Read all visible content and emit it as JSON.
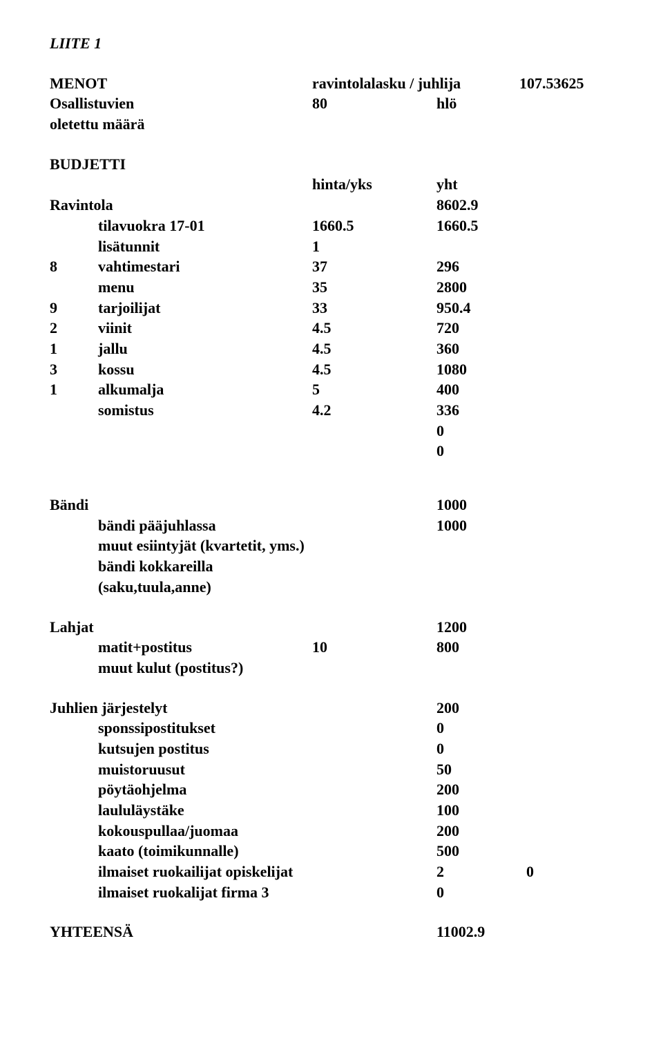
{
  "title": "LIITE 1",
  "menot": {
    "label": "MENOT",
    "desc": "ravintolalasku / juhlija",
    "per_person": "107.53625"
  },
  "osallistuvien": {
    "label": "Osallistuvien oletettu määrä",
    "count": "80",
    "unit": "hlö"
  },
  "budjetti": {
    "label": "BUDJETTI",
    "col1": "hinta/yks",
    "col2": "yht"
  },
  "ravintola": {
    "label": "Ravintola",
    "total": "8602.9",
    "rows": [
      {
        "pre": "",
        "label": "tilavuokra 17-01",
        "c": "1660.5",
        "d": "1660.5"
      },
      {
        "pre": "",
        "label": "lisätunnit",
        "c": "1",
        "d": ""
      },
      {
        "pre": "8",
        "label": "vahtimestari",
        "c": "37",
        "d": "296"
      },
      {
        "pre": "",
        "label": "menu",
        "c": "35",
        "d": "2800"
      },
      {
        "pre": "9",
        "label": "tarjoilijat",
        "c": "33",
        "d": "950.4"
      },
      {
        "pre": "2",
        "label": "viinit",
        "c": "4.5",
        "d": "720"
      },
      {
        "pre": "1",
        "label": "jallu",
        "c": "4.5",
        "d": "360"
      },
      {
        "pre": "3",
        "label": "kossu",
        "c": "4.5",
        "d": "1080"
      },
      {
        "pre": "1",
        "label": "alkumalja",
        "c": "5",
        "d": "400"
      },
      {
        "pre": "",
        "label": "somistus",
        "c": "4.2",
        "d": "336"
      },
      {
        "pre": "",
        "label": "",
        "c": "",
        "d": "0"
      },
      {
        "pre": "",
        "label": "",
        "c": "",
        "d": "0"
      }
    ]
  },
  "bandi": {
    "label": "Bändi",
    "total": "1000",
    "rows": [
      {
        "label": "bändi pääjuhlassa",
        "val": "1000"
      },
      {
        "label": "muut esiintyjät (kvartetit, yms.)",
        "val": ""
      },
      {
        "label": "bändi kokkareilla (saku,tuula,anne)",
        "val": ""
      }
    ]
  },
  "lahjat": {
    "label": "Lahjat",
    "total": "1200",
    "rows": [
      {
        "label": "matit+postitus",
        "c": "10",
        "d": "800"
      },
      {
        "label": "muut kulut (postitus?)",
        "c": "",
        "d": ""
      }
    ]
  },
  "juhlien": {
    "label": "Juhlien järjestelyt",
    "total": "200",
    "rows": [
      {
        "label": "sponssipostitukset",
        "d": "0",
        "e": ""
      },
      {
        "label": "kutsujen postitus",
        "d": "0",
        "e": ""
      },
      {
        "label": "muistoruusut",
        "d": "50",
        "e": ""
      },
      {
        "label": "pöytäohjelma",
        "d": "200",
        "e": ""
      },
      {
        "label": "laululäystäke",
        "d": "100",
        "e": ""
      },
      {
        "label": "kokouspullaa/juomaa",
        "d": "200",
        "e": ""
      },
      {
        "label": "kaato (toimikunnalle)",
        "d": "500",
        "e": ""
      },
      {
        "label": "ilmaiset ruokailijat opiskelijat",
        "d": "2",
        "e": "0"
      },
      {
        "label": "ilmaiset ruokalijat firma 3",
        "d": "0",
        "e": ""
      }
    ]
  },
  "yhteensa": {
    "label": "YHTEENSÄ",
    "value": "11002.9"
  }
}
